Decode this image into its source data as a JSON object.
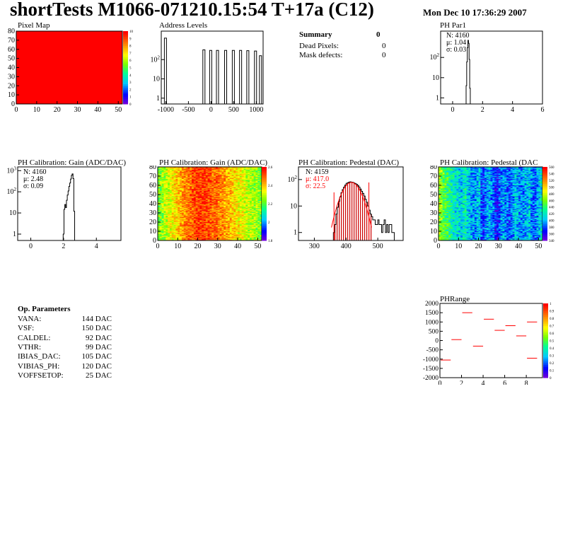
{
  "header": {
    "title": "shortTests M1066-071210.15:54 T+17a (C12)",
    "date": "Mon Dec 10 17:36:29 2007"
  },
  "summary": {
    "title": "Summary",
    "title_value": "0",
    "rows": [
      {
        "label": "Dead Pixels:",
        "value": "0"
      },
      {
        "label": "Mask defects:",
        "value": "0"
      }
    ]
  },
  "op_params": {
    "title": "Op. Parameters",
    "rows": [
      {
        "name": "VANA:",
        "value": "144 DAC"
      },
      {
        "name": "VSF:",
        "value": "150 DAC"
      },
      {
        "name": "CALDEL:",
        "value": "92 DAC"
      },
      {
        "name": "VTHR:",
        "value": "99 DAC"
      },
      {
        "name": "IBIAS_DAC:",
        "value": "105 DAC"
      },
      {
        "name": "VIBIAS_PH:",
        "value": "120 DAC"
      },
      {
        "name": "VOFFSETOP:",
        "value": "25 DAC"
      }
    ]
  },
  "colors": {
    "pixel_map_fill": "#ff0000",
    "fit_line": "#ff0000",
    "hatch": "#cc0000"
  },
  "chart_data": [
    {
      "id": "pixel_map",
      "type": "heatmap",
      "title": "Pixel Map",
      "xlim": [
        0,
        52
      ],
      "ylim": [
        0,
        80
      ],
      "xticks": [
        "0",
        "10",
        "20",
        "30",
        "40",
        "50"
      ],
      "yticks": [
        "0",
        "10",
        "20",
        "30",
        "40",
        "50",
        "60",
        "70",
        "80"
      ],
      "zlim": [
        0,
        10
      ],
      "zticks": [
        "0",
        "1",
        "2",
        "3",
        "4",
        "5",
        "6",
        "7",
        "8",
        "9",
        "10"
      ],
      "value": 10
    },
    {
      "id": "address_levels",
      "type": "bar",
      "title": "Address Levels",
      "xlim": [
        -1100,
        1150
      ],
      "yscale": "log",
      "xticks": [
        "-1000",
        "-500",
        "0",
        "500",
        "1000"
      ],
      "yticks": [
        "1",
        "10",
        "10^2"
      ],
      "peaks": [
        {
          "x": -1000,
          "y": 1300
        },
        {
          "x": -150,
          "y": 320
        },
        {
          "x": 0,
          "y": 300
        },
        {
          "x": 150,
          "y": 300
        },
        {
          "x": 330,
          "y": 300
        },
        {
          "x": 500,
          "y": 300
        },
        {
          "x": 660,
          "y": 300
        },
        {
          "x": 820,
          "y": 290
        },
        {
          "x": 990,
          "y": 280
        },
        {
          "x": 1100,
          "y": 160
        }
      ]
    },
    {
      "id": "ph_par1",
      "type": "bar",
      "title": "PH Par1",
      "xlim": [
        -0.8,
        6
      ],
      "yscale": "log",
      "xticks": [
        "0",
        "2",
        "4",
        "6"
      ],
      "yticks": [
        "1",
        "10",
        "10^2"
      ],
      "stats": {
        "N": "4160",
        "mu": "1.04",
        "sigma": "0.03"
      },
      "x": [
        0.92,
        0.96,
        1.0,
        1.04,
        1.08,
        1.12,
        1.16
      ],
      "y": [
        4,
        60,
        300,
        700,
        500,
        80,
        3
      ]
    },
    {
      "id": "gain_1d",
      "type": "bar",
      "title": "PH Calibration: Gain (ADC/DAC)",
      "xlim": [
        -0.8,
        5.5
      ],
      "yscale": "log",
      "xticks": [
        "0",
        "2",
        "4"
      ],
      "yticks": [
        "1",
        "10",
        "10^2",
        "10^3"
      ],
      "stats": {
        "N": "4160",
        "mu": "2.48",
        "sigma": "0.09"
      },
      "x": [
        2.0,
        2.05,
        2.1,
        2.15,
        2.2,
        2.25,
        2.3,
        2.35,
        2.4,
        2.45,
        2.5,
        2.55,
        2.6,
        2.65
      ],
      "y": [
        1,
        15,
        25,
        18,
        40,
        70,
        110,
        180,
        260,
        400,
        600,
        700,
        420,
        12
      ]
    },
    {
      "id": "gain_map",
      "type": "heatmap",
      "title": "PH Calibration: Gain (ADC/DAC)",
      "xlim": [
        0,
        52
      ],
      "ylim": [
        0,
        80
      ],
      "xticks": [
        "0",
        "10",
        "20",
        "30",
        "40",
        "50"
      ],
      "yticks": [
        "0",
        "10",
        "20",
        "30",
        "40",
        "50",
        "60",
        "70",
        "80"
      ],
      "zticks": [
        "1.8",
        "2",
        "2.2",
        "2.4",
        "2.6"
      ],
      "zlim": [
        1.8,
        2.7
      ],
      "column_means": [
        2.28,
        2.3,
        2.32,
        2.34,
        2.36,
        2.38,
        2.4,
        2.42,
        2.44,
        2.46,
        2.48,
        2.5,
        2.52,
        2.54,
        2.55,
        2.56,
        2.58,
        2.6,
        2.62,
        2.62,
        2.62,
        2.62,
        2.63,
        2.63,
        2.62,
        2.62,
        2.6,
        2.58,
        2.58,
        2.58,
        2.56,
        2.55,
        2.54,
        2.52,
        2.5,
        2.5,
        2.48,
        2.46,
        2.46,
        2.44,
        2.42,
        2.4,
        2.4,
        2.38,
        2.36,
        2.35,
        2.34,
        2.34,
        2.33,
        2.32,
        2.3,
        2.3
      ]
    },
    {
      "id": "pedestal_1d",
      "type": "bar",
      "title": "PH Calibration: Pedestal (DAC)",
      "xlim": [
        250,
        580
      ],
      "yscale": "log",
      "xticks": [
        "300",
        "400",
        "500"
      ],
      "yticks": [
        "1",
        "10",
        "10^2"
      ],
      "stats": {
        "N": "4159",
        "mu": "417.0",
        "sigma": "22.5"
      },
      "fit_range": [
        362,
        472
      ],
      "fit": {
        "mean": 417,
        "sigma": 22.5,
        "amplitude": 78
      },
      "x": [
        362,
        366,
        370,
        374,
        378,
        382,
        386,
        390,
        394,
        398,
        402,
        406,
        410,
        414,
        418,
        422,
        426,
        430,
        434,
        438,
        442,
        446,
        450,
        454,
        458,
        462,
        466,
        470,
        474,
        478,
        482,
        486,
        490,
        494,
        498,
        502,
        506,
        510,
        514,
        518,
        522,
        526,
        530,
        534,
        538,
        542,
        546,
        550
      ],
      "y": [
        1,
        2,
        5,
        9,
        15,
        22,
        32,
        42,
        52,
        62,
        72,
        76,
        80,
        82,
        80,
        78,
        74,
        70,
        66,
        60,
        52,
        44,
        36,
        30,
        24,
        18,
        14,
        10,
        7,
        5,
        4,
        3,
        3,
        2,
        2,
        3,
        2,
        2,
        1,
        2,
        3,
        1,
        2,
        1,
        2,
        2,
        1,
        1
      ]
    },
    {
      "id": "pedestal_map",
      "type": "heatmap",
      "title": "PH Calibration: Pedestal (DAC",
      "xlim": [
        0,
        52
      ],
      "ylim": [
        0,
        80
      ],
      "xticks": [
        "0",
        "10",
        "20",
        "30",
        "40",
        "50"
      ],
      "yticks": [
        "0",
        "10",
        "20",
        "30",
        "40",
        "50",
        "60",
        "70",
        "80"
      ],
      "zticks": [
        "340",
        "360",
        "380",
        "400",
        "420",
        "440",
        "460",
        "480",
        "500",
        "520",
        "540",
        "560"
      ],
      "zlim": [
        340,
        570
      ],
      "column_means": [
        470,
        465,
        455,
        450,
        445,
        440,
        430,
        425,
        420,
        420,
        415,
        410,
        420,
        425,
        410,
        405,
        400,
        400,
        395,
        405,
        410,
        380,
        375,
        390,
        400,
        405,
        395,
        390,
        370,
        365,
        380,
        395,
        400,
        395,
        385,
        380,
        390,
        400,
        410,
        405,
        395,
        390,
        395,
        400,
        405,
        410,
        395,
        385,
        390,
        400,
        410,
        420
      ]
    },
    {
      "id": "ph_range",
      "type": "scatter",
      "title": "PHRange",
      "xlim": [
        0,
        9.5
      ],
      "ylim": [
        -2000,
        2000
      ],
      "xticks": [
        "0",
        "2",
        "4",
        "6",
        "8"
      ],
      "yticks": [
        "-2000",
        "-1500",
        "-1000",
        "-500",
        "0",
        "500",
        "1000",
        "1500",
        "2000"
      ],
      "zticks": [
        "0",
        "0.1",
        "0.2",
        "0.3",
        "0.4",
        "0.5",
        "0.6",
        "0.7",
        "0.8",
        "0.9",
        "1"
      ],
      "zlim": [
        0,
        1
      ],
      "segments": [
        {
          "x0": 0,
          "x1": 1,
          "y": -1050
        },
        {
          "x0": 1,
          "x1": 2,
          "y": 50
        },
        {
          "x0": 2,
          "x1": 3,
          "y": 1500
        },
        {
          "x0": 3,
          "x1": 4,
          "y": -300
        },
        {
          "x0": 4,
          "x1": 5,
          "y": 1150
        },
        {
          "x0": 5,
          "x1": 6,
          "y": 550
        },
        {
          "x0": 6,
          "x1": 7,
          "y": 800
        },
        {
          "x0": 7,
          "x1": 8,
          "y": 250
        },
        {
          "x0": 8,
          "x1": 9,
          "y": 1000
        },
        {
          "x0": 8,
          "x1": 9,
          "y": -950
        }
      ]
    }
  ]
}
